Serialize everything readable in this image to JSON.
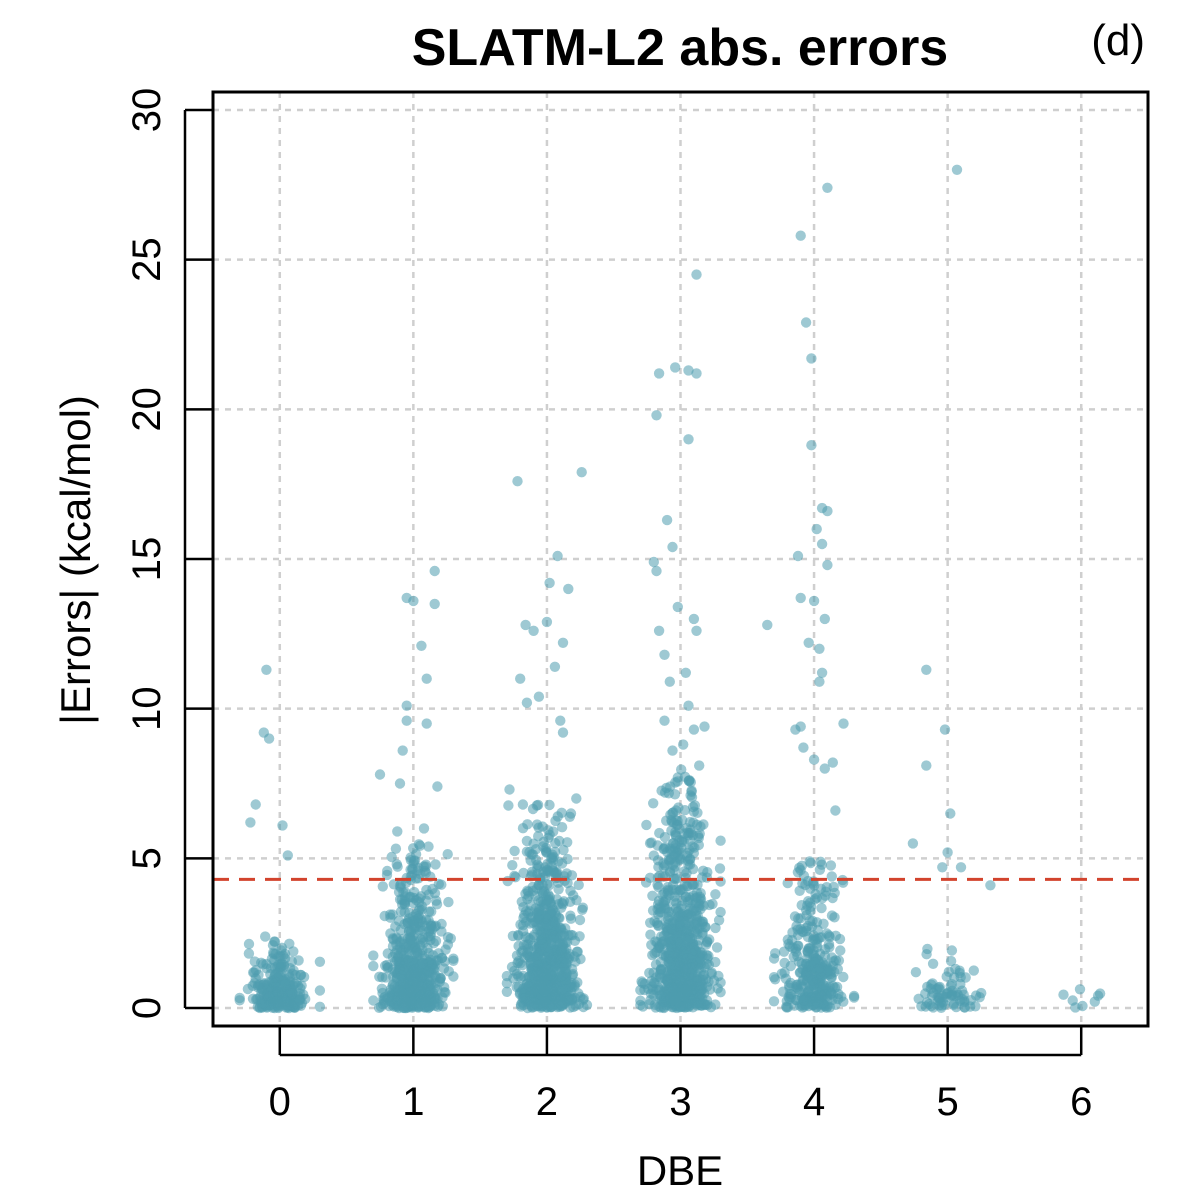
{
  "chart_data": {
    "type": "scatter",
    "title": "SLATM-L2 abs. errors",
    "panel_label": "(d)",
    "xlabel": "DBE",
    "ylabel": "|Errors| (kcal/mol)",
    "categories": [
      "0",
      "1",
      "2",
      "3",
      "4",
      "5",
      "6"
    ],
    "xlim": [
      -0.5,
      6.5
    ],
    "ylim": [
      0,
      30
    ],
    "yticks": [
      0,
      5,
      10,
      15,
      20,
      25,
      30
    ],
    "ytick_labels": [
      "0",
      "5",
      "10",
      "15",
      "20",
      "25",
      "30"
    ],
    "reference_line": {
      "y": 4.3,
      "color": "#d2432d",
      "style": "dashed"
    },
    "point_color": "#4f9caf",
    "grid": true,
    "outliers": [
      {
        "x": 0,
        "points": [
          [
            -0.1,
            11.3
          ],
          [
            -0.12,
            9.2
          ],
          [
            -0.08,
            9.0
          ],
          [
            -0.18,
            6.8
          ],
          [
            -0.22,
            6.2
          ],
          [
            0.02,
            6.1
          ],
          [
            0.06,
            5.1
          ]
        ]
      },
      {
        "x": 1,
        "points": [
          [
            -0.25,
            7.8
          ],
          [
            -0.05,
            13.7
          ],
          [
            0.0,
            13.6
          ],
          [
            0.16,
            14.6
          ],
          [
            0.16,
            13.5
          ],
          [
            0.06,
            12.1
          ],
          [
            0.1,
            11.0
          ],
          [
            -0.05,
            10.1
          ],
          [
            0.1,
            9.5
          ],
          [
            -0.05,
            9.6
          ],
          [
            0.18,
            7.4
          ],
          [
            -0.08,
            8.6
          ],
          [
            -0.1,
            7.5
          ],
          [
            0.08,
            6.0
          ],
          [
            -0.12,
            5.9
          ]
        ]
      },
      {
        "x": 2,
        "points": [
          [
            -0.22,
            17.6
          ],
          [
            0.26,
            17.9
          ],
          [
            0.08,
            15.1
          ],
          [
            0.02,
            14.2
          ],
          [
            0.16,
            14.0
          ],
          [
            -0.16,
            12.8
          ],
          [
            -0.1,
            12.6
          ],
          [
            0.0,
            12.9
          ],
          [
            0.12,
            12.2
          ],
          [
            -0.2,
            11.0
          ],
          [
            0.06,
            11.4
          ],
          [
            -0.06,
            10.4
          ],
          [
            -0.15,
            10.2
          ],
          [
            0.1,
            9.6
          ],
          [
            0.12,
            9.2
          ],
          [
            -0.28,
            7.3
          ],
          [
            -0.18,
            6.8
          ],
          [
            0.18,
            6.5
          ],
          [
            0.22,
            7.0
          ]
        ]
      },
      {
        "x": 3,
        "points": [
          [
            0.12,
            24.5
          ],
          [
            -0.16,
            21.2
          ],
          [
            -0.04,
            21.4
          ],
          [
            0.06,
            21.3
          ],
          [
            0.12,
            21.2
          ],
          [
            -0.18,
            19.8
          ],
          [
            0.06,
            19.0
          ],
          [
            -0.1,
            16.3
          ],
          [
            -0.18,
            14.6
          ],
          [
            -0.06,
            15.4
          ],
          [
            -0.2,
            14.9
          ],
          [
            -0.02,
            13.4
          ],
          [
            0.1,
            13.0
          ],
          [
            0.12,
            12.6
          ],
          [
            -0.16,
            12.6
          ],
          [
            -0.12,
            11.8
          ],
          [
            0.04,
            11.2
          ],
          [
            -0.08,
            10.9
          ],
          [
            0.06,
            10.1
          ],
          [
            -0.12,
            9.6
          ],
          [
            0.1,
            9.3
          ],
          [
            0.18,
            9.4
          ],
          [
            -0.06,
            8.6
          ],
          [
            0.02,
            8.8
          ],
          [
            0.14,
            8.1
          ]
        ]
      },
      {
        "x": 4,
        "points": [
          [
            0.1,
            27.4
          ],
          [
            -0.1,
            25.8
          ],
          [
            -0.06,
            22.9
          ],
          [
            -0.02,
            21.7
          ],
          [
            -0.02,
            18.8
          ],
          [
            0.06,
            16.7
          ],
          [
            0.1,
            16.6
          ],
          [
            0.02,
            16.0
          ],
          [
            0.06,
            15.5
          ],
          [
            -0.12,
            15.1
          ],
          [
            0.1,
            14.8
          ],
          [
            -0.1,
            13.7
          ],
          [
            0.0,
            13.6
          ],
          [
            -0.35,
            12.8
          ],
          [
            0.08,
            13.0
          ],
          [
            -0.04,
            12.2
          ],
          [
            0.04,
            12.0
          ],
          [
            0.06,
            11.2
          ],
          [
            0.04,
            10.9
          ],
          [
            0.22,
            9.5
          ],
          [
            -0.14,
            9.3
          ],
          [
            -0.1,
            9.4
          ],
          [
            0.0,
            8.3
          ],
          [
            0.08,
            8.0
          ],
          [
            0.14,
            8.2
          ],
          [
            -0.08,
            8.7
          ],
          [
            0.16,
            6.6
          ]
        ]
      },
      {
        "x": 5,
        "points": [
          [
            0.07,
            28.0
          ],
          [
            -0.16,
            11.3
          ],
          [
            -0.02,
            9.3
          ],
          [
            -0.16,
            8.1
          ],
          [
            0.02,
            6.5
          ],
          [
            -0.26,
            5.5
          ],
          [
            0.1,
            4.7
          ],
          [
            0.32,
            4.1
          ],
          [
            0.0,
            5.2
          ],
          [
            -0.04,
            4.7
          ]
        ]
      },
      {
        "x": 6,
        "points": []
      }
    ],
    "clusters": [
      {
        "x": 0,
        "count": 260,
        "typical_max": 2.4
      },
      {
        "x": 1,
        "count": 620,
        "typical_max": 5.5
      },
      {
        "x": 2,
        "count": 760,
        "typical_max": 6.8
      },
      {
        "x": 3,
        "count": 820,
        "typical_max": 8.0
      },
      {
        "x": 4,
        "count": 330,
        "typical_max": 4.9
      },
      {
        "x": 5,
        "count": 75,
        "typical_max": 2.3
      },
      {
        "x": 6,
        "count": 8,
        "typical_max": 0.8
      }
    ]
  }
}
